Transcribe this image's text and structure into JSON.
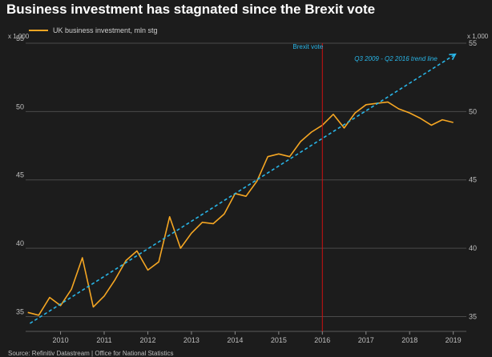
{
  "title": "Business investment has stagnated since the Brexit vote",
  "source": "Source: Refinitiv Datastream | Office for National Statistics",
  "chart_data": {
    "type": "line",
    "title": "Business investment has stagnated since the Brexit vote",
    "y_unit_left": "x 1,000",
    "y_unit_right": "x 1,000",
    "ylim": [
      34.5,
      55
    ],
    "yticks": [
      35,
      40,
      45,
      50,
      55
    ],
    "xlim": [
      2009.2,
      2019.3
    ],
    "xticks": [
      "2010",
      "2011",
      "2012",
      "2013",
      "2014",
      "2015",
      "2016",
      "2017",
      "2018",
      "2019"
    ],
    "grid": true,
    "legend_position": "top-left",
    "series": [
      {
        "name": "UK business investment, mln stg",
        "color": "#f5a623",
        "style": "solid",
        "x": [
          2009.25,
          2009.5,
          2009.75,
          2010.0,
          2010.25,
          2010.5,
          2010.75,
          2011.0,
          2011.25,
          2011.5,
          2011.75,
          2012.0,
          2012.25,
          2012.5,
          2012.75,
          2013.0,
          2013.25,
          2013.5,
          2013.75,
          2014.0,
          2014.25,
          2014.5,
          2014.75,
          2015.0,
          2015.25,
          2015.5,
          2015.75,
          2016.0,
          2016.25,
          2016.5,
          2016.75,
          2017.0,
          2017.25,
          2017.5,
          2017.75,
          2018.0,
          2018.25,
          2018.5,
          2018.75,
          2019.0
        ],
        "values": [
          35.3,
          35.1,
          36.4,
          35.8,
          37.0,
          39.3,
          35.7,
          36.5,
          37.7,
          39.1,
          39.8,
          38.4,
          39.0,
          42.3,
          40.0,
          41.1,
          41.9,
          41.8,
          42.5,
          44.0,
          43.8,
          44.9,
          46.7,
          46.9,
          46.7,
          47.8,
          48.5,
          49.0,
          49.8,
          48.8,
          49.9,
          50.5,
          50.6,
          50.7,
          50.2,
          49.9,
          49.5,
          49.0,
          49.4,
          49.2
        ]
      },
      {
        "name": "Q3 2009 - Q2 2016 trend line",
        "color": "#29b6e8",
        "style": "dashed",
        "x": [
          2009.3,
          2019.05
        ],
        "values": [
          34.5,
          54.2
        ]
      }
    ],
    "annotations": [
      {
        "text": "Brexit vote",
        "x": 2016.0,
        "color": "#cc1111"
      }
    ]
  }
}
